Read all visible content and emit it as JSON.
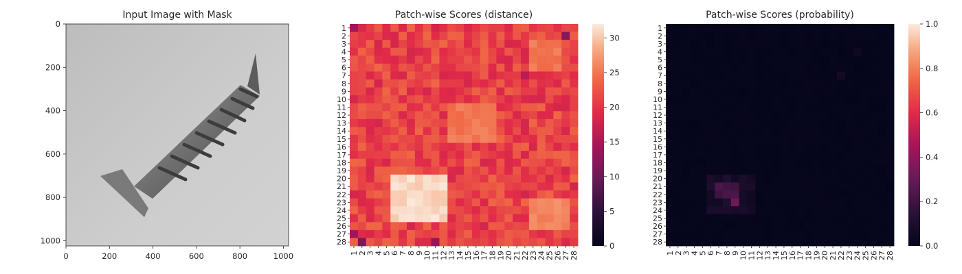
{
  "chart_data": [
    {
      "type": "image",
      "title": "Input Image with Mask",
      "x_ticks": [
        0,
        200,
        400,
        600,
        800,
        1000
      ],
      "y_ticks": [
        0,
        200,
        400,
        600,
        800,
        1000
      ],
      "xlim": [
        0,
        1024
      ],
      "ylim": [
        0,
        1024
      ],
      "content": "grayscale photo of a screw",
      "colors": {
        "background": "#c9c9c9",
        "object": "#7f7f7f"
      }
    },
    {
      "type": "heatmap",
      "title": "Patch-wise Scores (distance)",
      "rows": [
        "1",
        "2",
        "3",
        "4",
        "5",
        "6",
        "7",
        "8",
        "9",
        "10",
        "11",
        "12",
        "13",
        "14",
        "15",
        "16",
        "17",
        "18",
        "19",
        "20",
        "21",
        "22",
        "23",
        "24",
        "25",
        "26",
        "27",
        "28"
      ],
      "cols": [
        "1",
        "2",
        "3",
        "4",
        "5",
        "6",
        "7",
        "8",
        "9",
        "10",
        "11",
        "12",
        "13",
        "14",
        "15",
        "16",
        "17",
        "18",
        "19",
        "20",
        "21",
        "22",
        "23",
        "24",
        "25",
        "26",
        "27",
        "28"
      ],
      "colorbar_ticks": [
        0,
        5,
        10,
        15,
        20,
        25,
        30
      ],
      "vmin": 0,
      "vmax": 32,
      "colormap": "rocket",
      "base_value": 21,
      "hot_regions": [
        {
          "rows": [
            20,
            25
          ],
          "cols": [
            6,
            12
          ],
          "value": 31
        },
        {
          "rows": [
            23,
            26
          ],
          "cols": [
            23,
            27
          ],
          "value": 26
        },
        {
          "rows": [
            3,
            6
          ],
          "cols": [
            23,
            26
          ],
          "value": 25
        },
        {
          "rows": [
            11,
            15
          ],
          "cols": [
            13,
            18
          ],
          "value": 25
        }
      ],
      "cold_cells": [
        {
          "row": 1,
          "col": 1,
          "value": 14
        },
        {
          "row": 2,
          "col": 27,
          "value": 12
        },
        {
          "row": 28,
          "col": 2,
          "value": 11
        },
        {
          "row": 28,
          "col": 11,
          "value": 13
        },
        {
          "row": 27,
          "col": 1,
          "value": 14
        },
        {
          "row": 7,
          "col": 22,
          "value": 16
        }
      ]
    },
    {
      "type": "heatmap",
      "title": "Patch-wise Scores (probability)",
      "rows": [
        "1",
        "2",
        "3",
        "4",
        "5",
        "6",
        "7",
        "8",
        "9",
        "10",
        "11",
        "12",
        "13",
        "14",
        "15",
        "16",
        "17",
        "18",
        "19",
        "20",
        "21",
        "22",
        "23",
        "24",
        "25",
        "26",
        "27",
        "28"
      ],
      "cols": [
        "1",
        "2",
        "3",
        "4",
        "5",
        "6",
        "7",
        "8",
        "9",
        "10",
        "11",
        "12",
        "13",
        "14",
        "15",
        "16",
        "17",
        "18",
        "19",
        "20",
        "21",
        "22",
        "23",
        "24",
        "25",
        "26",
        "27",
        "28"
      ],
      "colorbar_ticks": [
        0.0,
        0.2,
        0.4,
        0.6,
        0.8,
        1.0
      ],
      "colorbar_tick_labels": [
        "0.0",
        "0.2",
        "0.4",
        "0.6",
        "0.8",
        "1.0"
      ],
      "vmin": 0,
      "vmax": 1,
      "colormap": "rocket",
      "base_value": 0.01,
      "hot_regions": [
        {
          "rows": [
            21,
            22
          ],
          "cols": [
            7,
            9
          ],
          "value": 0.22
        },
        {
          "rows": [
            23,
            23
          ],
          "cols": [
            9,
            9
          ],
          "value": 0.3
        },
        {
          "rows": [
            20,
            24
          ],
          "cols": [
            6,
            11
          ],
          "value": 0.08
        },
        {
          "rows": [
            7,
            7
          ],
          "cols": [
            22,
            22
          ],
          "value": 0.08
        },
        {
          "rows": [
            4,
            4
          ],
          "cols": [
            24,
            24
          ],
          "value": 0.05
        }
      ],
      "cold_cells": []
    }
  ]
}
